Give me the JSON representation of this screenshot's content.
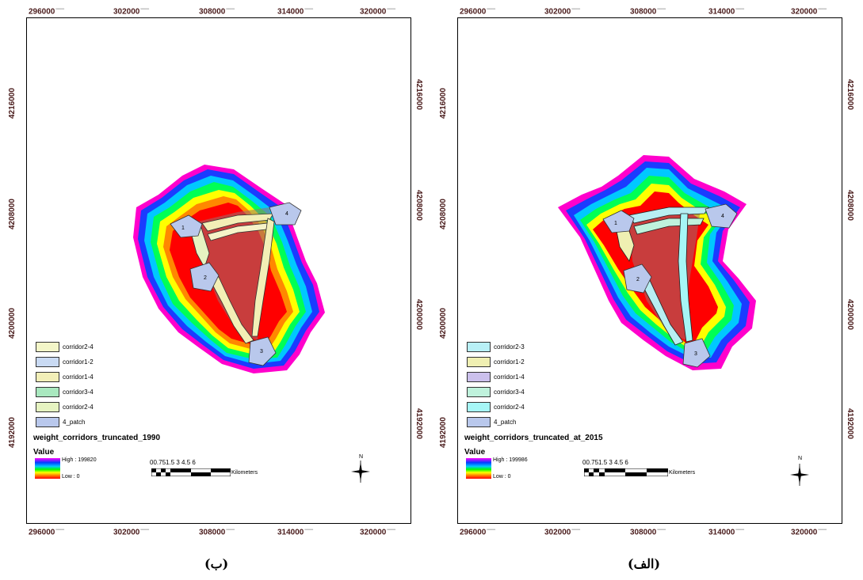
{
  "panels": [
    {
      "id": "left",
      "x_ticks_top": [
        "296000",
        "302000",
        "308000",
        "314000",
        "320000"
      ],
      "x_ticks_bottom": [
        "296000",
        "302000",
        "308000",
        "314000",
        "320000"
      ],
      "y_ticks": [
        "4216000",
        "4208000",
        "4200000",
        "4192000"
      ],
      "legend_items": [
        {
          "label": "corridor2-4",
          "color": "#f3f6c8"
        },
        {
          "label": "corridor1-2",
          "color": "#c9daf3"
        },
        {
          "label": "corridor1-4",
          "color": "#f2efb8"
        },
        {
          "label": "corridor3-4",
          "color": "#a9e8bf"
        },
        {
          "label": "corridor2-4",
          "color": "#e6f3c1"
        },
        {
          "label": "4_patch",
          "color": "#b9c8ec"
        }
      ],
      "layer_title": "weight_corridors_truncated_1990",
      "value_title": "Value",
      "high_label": "High : 199820",
      "low_label": "Low : 0",
      "scale_numbers": "00.751.5     3      4.5      6",
      "scale_unit": "Kilometers",
      "north": "N",
      "patch_labels": [
        "1",
        "2",
        "3",
        "4"
      ],
      "corridor_color": "#f3efb6",
      "caption": "(ب)"
    },
    {
      "id": "right",
      "x_ticks_top": [
        "296000",
        "302000",
        "308000",
        "314000",
        "320000"
      ],
      "x_ticks_bottom": [
        "296000",
        "302000",
        "308000",
        "314000",
        "320000"
      ],
      "y_ticks": [
        "4216000",
        "4208000",
        "4200000",
        "4192000"
      ],
      "legend_items": [
        {
          "label": "corridor2-3",
          "color": "#b8f0f6"
        },
        {
          "label": "corridor1-2",
          "color": "#efefb2"
        },
        {
          "label": "corridor1-4",
          "color": "#cbc0ec"
        },
        {
          "label": "corridor3-4",
          "color": "#bff2dc"
        },
        {
          "label": "corridor2-4",
          "color": "#a6f6f6"
        },
        {
          "label": "4_patch",
          "color": "#b9c8ec"
        }
      ],
      "layer_title": "weight_corridors_truncated_at_2015",
      "value_title": "Value",
      "high_label": "High : 199986",
      "low_label": "Low : 0",
      "scale_numbers": "00.751.5     3      4.5      6",
      "scale_unit": "Kilometers",
      "north": "N",
      "patch_labels": [
        "1",
        "2",
        "3",
        "4"
      ],
      "corridor_color": "#b8eef2",
      "caption": "(الف)"
    }
  ]
}
